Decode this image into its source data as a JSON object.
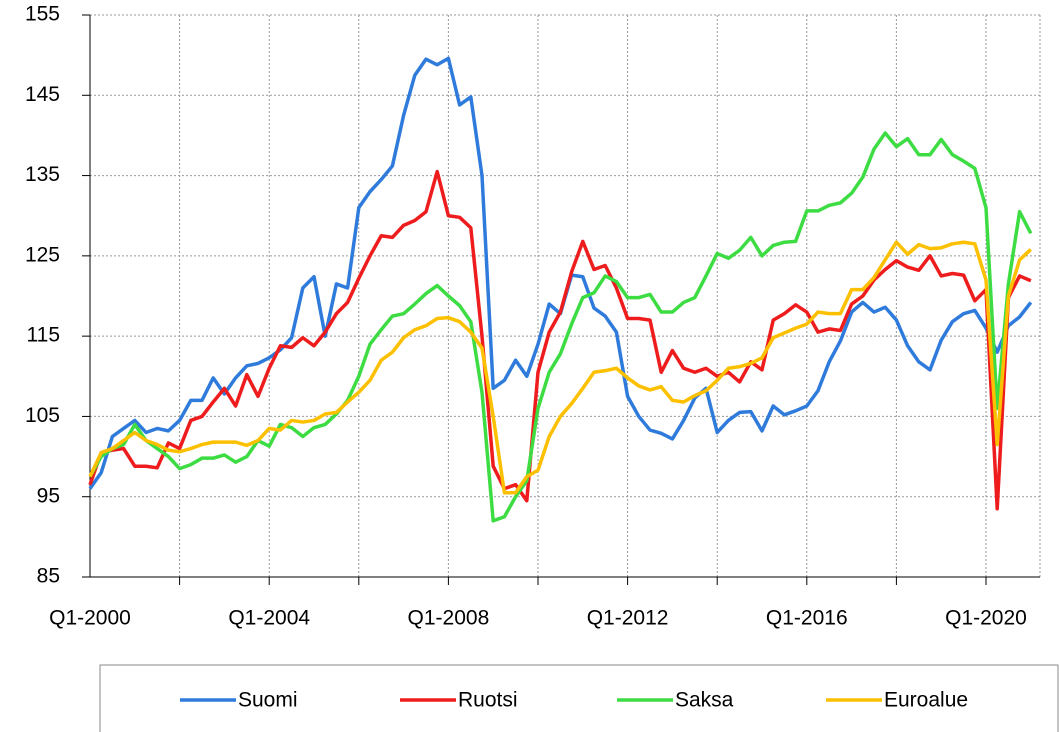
{
  "chart_data": {
    "type": "line",
    "categories": [
      "Q1-2000",
      null,
      null,
      null,
      null,
      null,
      null,
      null,
      null,
      null,
      null,
      null,
      null,
      null,
      null,
      null,
      "Q1-2004",
      null,
      null,
      null,
      null,
      null,
      null,
      null,
      null,
      null,
      null,
      null,
      null,
      null,
      null,
      null,
      "Q1-2008",
      null,
      null,
      null,
      null,
      null,
      null,
      null,
      null,
      null,
      null,
      null,
      null,
      null,
      null,
      null,
      "Q1-2012",
      null,
      null,
      null,
      null,
      null,
      null,
      null,
      null,
      null,
      null,
      null,
      null,
      null,
      null,
      null,
      "Q1-2016",
      null,
      null,
      null,
      null,
      null,
      null,
      null,
      null,
      null,
      null,
      null,
      null,
      null,
      null,
      null,
      "Q1-2020",
      null,
      null,
      null,
      null
    ],
    "ylim": [
      85,
      155
    ],
    "yticks": [
      85,
      95,
      105,
      115,
      125,
      135,
      145,
      155
    ],
    "grid": true,
    "legend": "bottom",
    "series": [
      {
        "name": "Suomi",
        "color": "#2f7bdc",
        "values": [
          96,
          98,
          102.5,
          103.5,
          104.5,
          103,
          103.5,
          103.2,
          104.5,
          107,
          107,
          109.8,
          107.8,
          109.8,
          111.3,
          111.6,
          112.3,
          113.3,
          114.8,
          121,
          122.4,
          115,
          121.5,
          121,
          131,
          133,
          134.5,
          136.2,
          142.5,
          147.5,
          149.5,
          148.8,
          149.6,
          143.8,
          144.8,
          135,
          108.5,
          109.5,
          112,
          110,
          114,
          119,
          117.8,
          122.6,
          122.4,
          118.5,
          117.5,
          115.5,
          107.5,
          105,
          103.3,
          102.9,
          102.2,
          104.5,
          107.3,
          108.5,
          103,
          104.5,
          105.5,
          105.6,
          103.2,
          106.3,
          105.2,
          105.7,
          106.3,
          108.2,
          111.8,
          114.4,
          118,
          119.2,
          118,
          118.6,
          117,
          113.8,
          111.8,
          110.8,
          114.5,
          116.8,
          117.8,
          118.2,
          116,
          113,
          116.3,
          117.4,
          119.2
        ]
      },
      {
        "name": "Ruotsi",
        "color": "#ee1c1c",
        "values": [
          96.5,
          100.5,
          100.8,
          101,
          98.8,
          98.8,
          98.6,
          101.7,
          101,
          104.5,
          105,
          106.8,
          108.5,
          106.3,
          110.2,
          107.5,
          111,
          113.8,
          113.6,
          114.8,
          113.8,
          115.5,
          117.8,
          119.2,
          122.2,
          125,
          127.5,
          127.3,
          128.8,
          129.4,
          130.5,
          135.5,
          130,
          129.8,
          128.5,
          115,
          98.8,
          96,
          96.5,
          94.5,
          110.5,
          115.5,
          118,
          123,
          126.8,
          123.3,
          123.8,
          121,
          117.2,
          117.2,
          117,
          110.5,
          113.2,
          111,
          110.5,
          111,
          110,
          110.5,
          109.3,
          111.8,
          110.8,
          117,
          117.8,
          118.9,
          118,
          115.5,
          115.9,
          115.7,
          119,
          120,
          122,
          123.3,
          124.4,
          123.6,
          123.2,
          125,
          122.5,
          122.8,
          122.6,
          119.4,
          120.8,
          93.5,
          119.8,
          122.5,
          121.9
        ]
      },
      {
        "name": "Saksa",
        "color": "#3ddc43",
        "values": [
          97.5,
          100,
          101,
          101.5,
          104,
          102,
          101,
          100,
          98.5,
          99,
          99.8,
          99.8,
          100.2,
          99.3,
          100,
          102,
          101.3,
          104,
          103.6,
          102.5,
          103.6,
          104,
          105.3,
          107,
          110,
          114,
          115.8,
          117.5,
          117.8,
          119,
          120.3,
          121.3,
          120,
          118.8,
          116.8,
          108,
          92,
          92.5,
          95,
          97,
          106,
          110.5,
          112.8,
          116.5,
          119.8,
          120.4,
          122.5,
          121.8,
          119.8,
          119.8,
          120.2,
          118,
          118,
          119.2,
          119.8,
          122.5,
          125.3,
          124.7,
          125.7,
          127.3,
          125,
          126.3,
          126.7,
          126.8,
          130.6,
          130.6,
          131.3,
          131.6,
          132.8,
          134.8,
          138.3,
          140.3,
          138.6,
          139.6,
          137.6,
          137.6,
          139.5,
          137.6,
          136.8,
          135.9,
          131,
          106,
          121.5,
          130.5,
          127.8
        ]
      },
      {
        "name": "Euroalue",
        "color": "#fcc000",
        "values": [
          97.5,
          100.5,
          101,
          102,
          103,
          102,
          101.5,
          100.8,
          100.6,
          101,
          101.5,
          101.8,
          101.8,
          101.8,
          101.4,
          102,
          103.5,
          103.3,
          104.5,
          104.3,
          104.5,
          105.3,
          105.5,
          106.8,
          108,
          109.5,
          112,
          113,
          114.8,
          115.8,
          116.3,
          117.2,
          117.3,
          116.8,
          115.5,
          113.5,
          105,
          95.5,
          95.5,
          97.5,
          98.3,
          102.5,
          105,
          106.6,
          108.5,
          110.5,
          110.7,
          111,
          109.8,
          108.8,
          108.3,
          108.7,
          107,
          106.8,
          107.6,
          108.2,
          109.5,
          111,
          111.2,
          111.6,
          112.3,
          114.8,
          115.4,
          116,
          116.5,
          118,
          117.8,
          117.8,
          120.8,
          120.8,
          122.3,
          124.5,
          126.7,
          125.2,
          126.4,
          125.9,
          126,
          126.5,
          126.7,
          126.5,
          122,
          101.5,
          120,
          124.5,
          125.8
        ]
      }
    ]
  }
}
